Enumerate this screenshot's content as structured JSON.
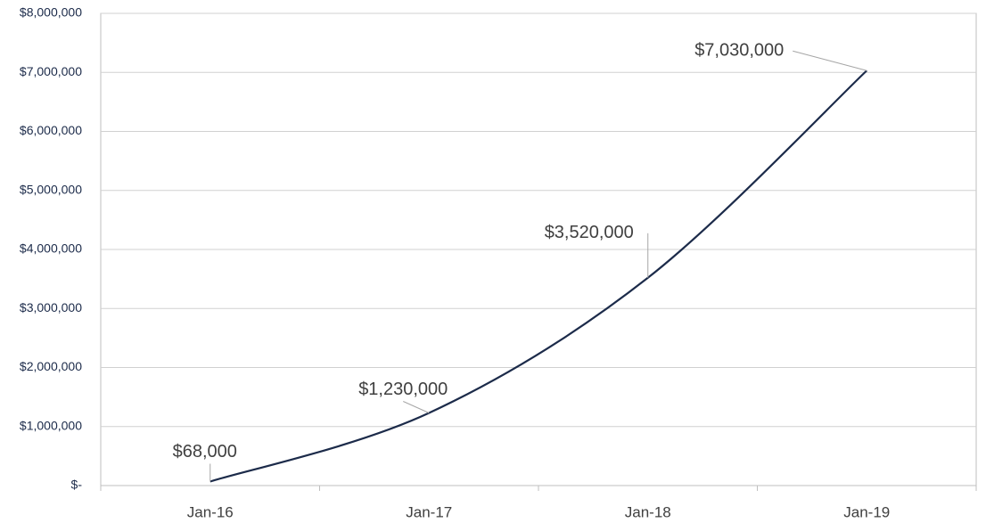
{
  "chart_data": {
    "type": "line",
    "categories": [
      "Jan-16",
      "Jan-17",
      "Jan-18",
      "Jan-19"
    ],
    "values": [
      68000,
      1230000,
      3520000,
      7030000
    ],
    "value_labels": [
      "$68,000",
      "$1,230,000",
      "$3,520,000",
      "$7,030,000"
    ],
    "color": "#1c2b4a",
    "ylim": [
      0,
      8000000
    ],
    "yticks": [
      {
        "value": 0,
        "label": "$-"
      },
      {
        "value": 1000000,
        "label": "$1,000,000"
      },
      {
        "value": 2000000,
        "label": "$2,000,000"
      },
      {
        "value": 3000000,
        "label": "$3,000,000"
      },
      {
        "value": 4000000,
        "label": "$4,000,000"
      },
      {
        "value": 5000000,
        "label": "$5,000,000"
      },
      {
        "value": 6000000,
        "label": "$6,000,000"
      },
      {
        "value": 7000000,
        "label": "$7,000,000"
      },
      {
        "value": 8000000,
        "label": "$8,000,000"
      }
    ],
    "grid": true,
    "smooth": true
  }
}
